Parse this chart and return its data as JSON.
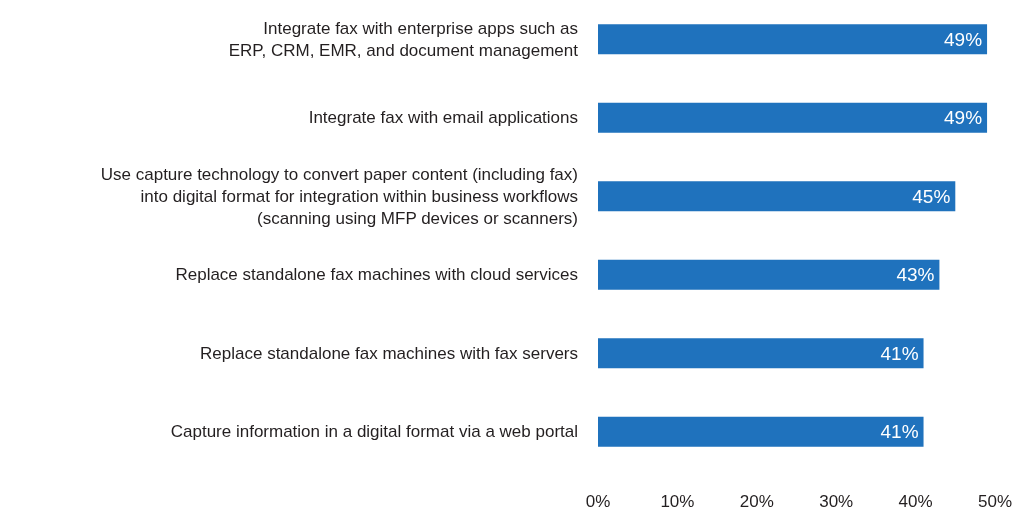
{
  "chart_data": {
    "type": "bar",
    "orientation": "horizontal",
    "categories": [
      "Integrate fax with enterprise apps such as\nERP, CRM, EMR, and document management",
      "Integrate fax with email applications",
      "Use capture technology to convert paper content (including fax)\ninto digital format for integration within business workflows\n(scanning using MFP devices or scanners)",
      "Replace standalone fax machines with cloud services",
      "Replace standalone fax machines with fax servers",
      "Capture information in a digital format via a web portal"
    ],
    "values": [
      49,
      49,
      45,
      43,
      41,
      41
    ],
    "value_labels": [
      "49%",
      "49%",
      "45%",
      "43%",
      "41%",
      "41%"
    ],
    "color": "#1f72bd",
    "xlim": [
      0,
      50
    ],
    "xticks": [
      {
        "value": 0,
        "label": "0%"
      },
      {
        "value": 10,
        "label": "10%"
      },
      {
        "value": 20,
        "label": "20%"
      },
      {
        "value": 30,
        "label": "30%"
      },
      {
        "value": 40,
        "label": "40%"
      },
      {
        "value": 50,
        "label": "50%"
      }
    ]
  }
}
